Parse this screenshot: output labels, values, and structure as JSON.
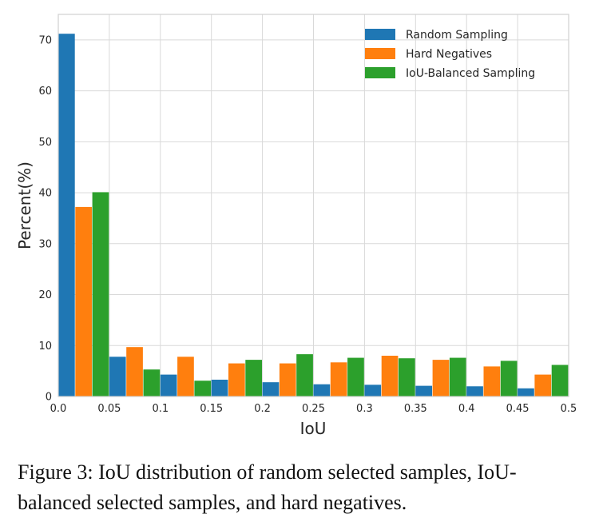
{
  "chart_data": {
    "type": "bar",
    "title": "",
    "xlabel": "IoU",
    "ylabel": "Percent(%)",
    "xlim": [
      0.0,
      0.5
    ],
    "ylim": [
      0,
      75
    ],
    "x_ticks": [
      "0.0",
      "0.05",
      "0.1",
      "0.15",
      "0.2",
      "0.25",
      "0.3",
      "0.35",
      "0.4",
      "0.45",
      "0.5"
    ],
    "y_ticks": [
      "0",
      "10",
      "20",
      "30",
      "40",
      "50",
      "60",
      "70"
    ],
    "bin_edges": [
      0.0,
      0.05,
      0.1,
      0.15,
      0.2,
      0.25,
      0.3,
      0.35,
      0.4,
      0.45,
      0.5
    ],
    "grid": true,
    "legend_position": "top-right",
    "series": [
      {
        "name": "Random Sampling",
        "color": "#1f77b4",
        "values": [
          71.2,
          7.8,
          4.3,
          3.3,
          2.8,
          2.4,
          2.3,
          2.1,
          2.0,
          1.6
        ]
      },
      {
        "name": "Hard Negatives",
        "color": "#ff7f0e",
        "values": [
          37.2,
          9.7,
          7.8,
          6.5,
          6.5,
          6.7,
          8.0,
          7.2,
          5.9,
          4.3
        ]
      },
      {
        "name": "IoU-Balanced Sampling",
        "color": "#2ca02c",
        "values": [
          40.1,
          5.3,
          3.1,
          7.2,
          8.3,
          7.6,
          7.5,
          7.6,
          7.0,
          6.2
        ]
      }
    ]
  },
  "caption": "Figure 3: IoU distribution of random selected samples, IoU-balanced selected samples, and hard negatives."
}
